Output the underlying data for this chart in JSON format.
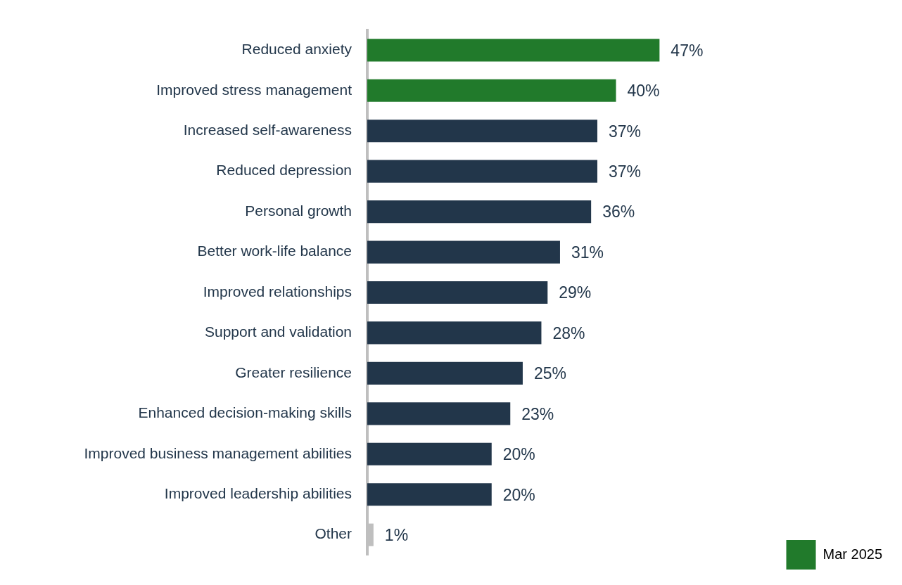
{
  "chart_data": {
    "type": "bar",
    "orientation": "horizontal",
    "categories": [
      "Reduced anxiety",
      "Improved stress management",
      "Increased self-awareness",
      "Reduced depression",
      "Personal growth",
      "Better work-life balance",
      "Improved relationships",
      "Support and validation",
      "Greater resilience",
      "Enhanced decision-making skills",
      "Improved business management abilities",
      "Improved leadership abilities",
      "Other"
    ],
    "series": [
      {
        "name": "Mar 2025",
        "color": "#217a2b",
        "colors": [
          "#217a2b",
          "#217a2b",
          "#22364a",
          "#22364a",
          "#22364a",
          "#22364a",
          "#22364a",
          "#22364a",
          "#22364a",
          "#22364a",
          "#22364a",
          "#22364a",
          "#bfbfbf"
        ],
        "values": [
          47,
          40,
          37,
          37,
          36,
          31,
          29,
          28,
          25,
          23,
          20,
          20,
          1
        ],
        "value_labels": [
          "47%",
          "40%",
          "37%",
          "37%",
          "36%",
          "31%",
          "29%",
          "28%",
          "25%",
          "23%",
          "20%",
          "20%",
          "1%"
        ]
      }
    ],
    "legend": "bottom right"
  }
}
